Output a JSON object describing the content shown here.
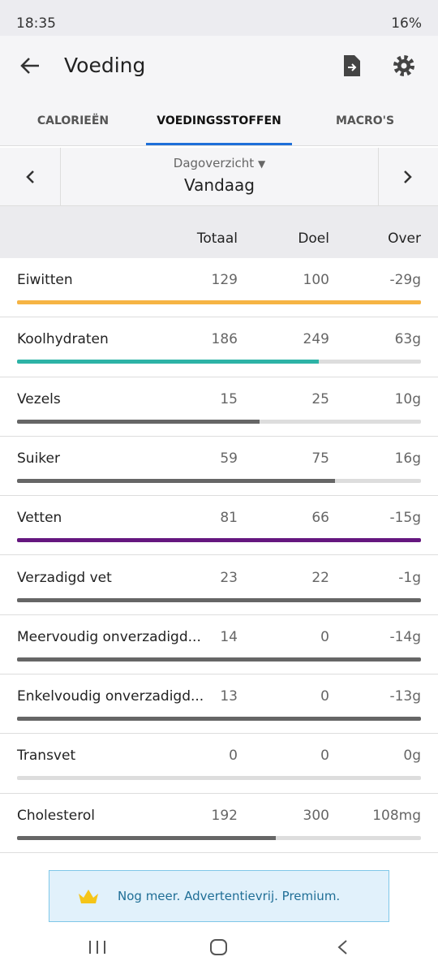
{
  "status_bar": {
    "time": "18:35",
    "battery": "16%"
  },
  "header": {
    "title": "Voeding"
  },
  "tabs": [
    {
      "label": "CALORIEËN"
    },
    {
      "label": "VOEDINGSSTOFFEN"
    },
    {
      "label": "MACRO'S"
    }
  ],
  "selector": {
    "period_type": "Dagoverzicht",
    "period": "Vandaag"
  },
  "table": {
    "columns": [
      "Totaal",
      "Doel",
      "Over"
    ],
    "rows": [
      {
        "name": "Eiwitten",
        "total": 129,
        "goal": 100,
        "over": "-29g",
        "color": "#f6b444"
      },
      {
        "name": "Koolhydraten",
        "total": 186,
        "goal": 249,
        "over": "63g",
        "color": "#2db3a6"
      },
      {
        "name": "Vezels",
        "total": 15,
        "goal": 25,
        "over": "10g",
        "color": "#666666"
      },
      {
        "name": "Suiker",
        "total": 59,
        "goal": 75,
        "over": "16g",
        "color": "#666666"
      },
      {
        "name": "Vetten",
        "total": 81,
        "goal": 66,
        "over": "-15g",
        "color": "#65177f"
      },
      {
        "name": "Verzadigd vet",
        "total": 23,
        "goal": 22,
        "over": "-1g",
        "color": "#666666"
      },
      {
        "name": "Meervoudig onverzadigd...",
        "total": 14,
        "goal": 0,
        "over": "-14g",
        "color": "#666666"
      },
      {
        "name": "Enkelvoudig onverzadigd...",
        "total": 13,
        "goal": 0,
        "over": "-13g",
        "color": "#666666"
      },
      {
        "name": "Transvet",
        "total": 0,
        "goal": 0,
        "over": "0g",
        "color": "#666666"
      },
      {
        "name": "Cholesterol",
        "total": 192,
        "goal": 300,
        "over": "108mg",
        "color": "#666666"
      }
    ]
  },
  "banner": {
    "text": "Nog meer. Advertentievrij. Premium."
  }
}
